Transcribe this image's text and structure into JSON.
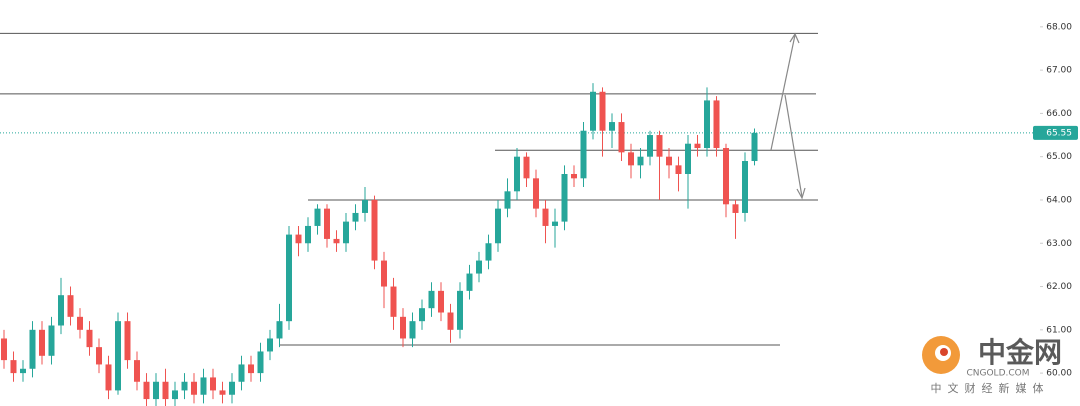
{
  "chart_data": {
    "type": "candlestick",
    "up_color": "#26a69a",
    "down_color": "#ef5350",
    "ylim": [
      59.24,
      68.62
    ],
    "yticks": [
      {
        "value": 60,
        "label": "60.00"
      },
      {
        "value": 61,
        "label": "61.00"
      },
      {
        "value": 62,
        "label": "62.00"
      },
      {
        "value": 63,
        "label": "63.00"
      },
      {
        "value": 64,
        "label": "64.00"
      },
      {
        "value": 65,
        "label": "65.00"
      },
      {
        "value": 66,
        "label": "66.00"
      },
      {
        "value": 67,
        "label": "67.00"
      },
      {
        "value": 68,
        "label": "68.00"
      }
    ],
    "last_price": 65.55,
    "levels": [
      67.85,
      66.45,
      65.15,
      64.0,
      60.65
    ],
    "open": [
      60.8,
      60.3,
      60.0,
      60.1,
      61.0,
      60.4,
      61.1,
      61.8,
      61.3,
      61.0,
      60.6,
      60.2,
      59.6,
      61.2,
      60.3,
      59.8,
      59.4,
      59.8,
      59.4,
      59.6,
      59.8,
      59.5,
      59.9,
      59.6,
      59.5,
      59.8,
      60.2,
      60.0,
      60.5,
      60.8,
      61.2,
      63.2,
      63.0,
      63.4,
      63.8,
      63.1,
      63.0,
      63.5,
      63.7,
      64.0,
      62.6,
      62.0,
      61.3,
      60.8,
      61.2,
      61.5,
      61.9,
      61.4,
      61.0,
      61.9,
      62.3,
      62.6,
      63.0,
      63.8,
      64.2,
      65.0,
      64.5,
      63.8,
      63.4,
      63.5,
      64.6,
      64.5,
      65.6,
      66.5,
      65.6,
      65.8,
      65.1,
      64.8,
      65.0,
      65.5,
      65.0,
      64.8,
      64.6,
      65.3,
      65.2,
      66.3,
      65.2,
      63.9,
      63.7,
      64.9
    ],
    "high": [
      61.0,
      60.5,
      60.3,
      61.2,
      61.2,
      61.3,
      62.2,
      62.0,
      61.5,
      61.2,
      60.8,
      60.4,
      61.4,
      61.4,
      60.5,
      60.0,
      60.0,
      60.1,
      59.8,
      60.0,
      60.0,
      60.1,
      60.1,
      59.8,
      60.0,
      60.4,
      60.4,
      60.7,
      61.0,
      61.6,
      63.4,
      63.4,
      63.6,
      63.9,
      63.9,
      63.3,
      63.7,
      63.9,
      64.3,
      64.1,
      62.8,
      62.2,
      61.5,
      61.4,
      61.7,
      62.1,
      62.1,
      61.6,
      62.1,
      62.5,
      62.8,
      63.2,
      64.0,
      64.5,
      65.2,
      65.1,
      64.7,
      64.0,
      63.8,
      64.8,
      64.8,
      65.8,
      66.7,
      66.6,
      66.0,
      66.0,
      65.3,
      65.2,
      65.6,
      65.6,
      65.2,
      65.0,
      65.5,
      65.5,
      66.6,
      66.4,
      65.3,
      64.0,
      65.1,
      65.65
    ],
    "low": [
      60.1,
      59.8,
      59.8,
      59.9,
      60.2,
      60.2,
      60.9,
      61.1,
      60.8,
      60.4,
      60.0,
      59.4,
      59.5,
      60.1,
      59.6,
      59.2,
      59.2,
      59.2,
      59.2,
      59.4,
      59.3,
      59.3,
      59.4,
      59.3,
      59.3,
      59.6,
      59.8,
      59.8,
      60.3,
      60.6,
      61.0,
      62.7,
      62.8,
      63.2,
      62.9,
      62.8,
      62.8,
      63.3,
      63.5,
      62.4,
      61.5,
      61.0,
      60.6,
      60.6,
      61.0,
      61.3,
      61.2,
      60.7,
      60.8,
      61.7,
      62.1,
      62.4,
      62.8,
      63.6,
      64.0,
      64.3,
      63.6,
      63.0,
      62.9,
      63.3,
      64.3,
      64.3,
      65.4,
      65.0,
      65.2,
      64.9,
      64.5,
      64.5,
      64.8,
      64.0,
      64.5,
      64.2,
      63.8,
      65.0,
      65.0,
      65.0,
      63.6,
      63.1,
      63.5,
      64.8
    ],
    "close": [
      60.3,
      60.0,
      60.1,
      61.0,
      60.4,
      61.1,
      61.8,
      61.3,
      61.0,
      60.6,
      60.2,
      59.6,
      61.2,
      60.3,
      59.8,
      59.4,
      59.8,
      59.4,
      59.6,
      59.8,
      59.5,
      59.9,
      59.6,
      59.5,
      59.8,
      60.2,
      60.0,
      60.5,
      60.8,
      61.2,
      63.2,
      63.0,
      63.4,
      63.8,
      63.1,
      63.0,
      63.5,
      63.7,
      64.0,
      62.6,
      62.0,
      61.3,
      60.8,
      61.2,
      61.5,
      61.9,
      61.4,
      61.0,
      61.9,
      62.3,
      62.6,
      63.0,
      63.8,
      64.2,
      65.0,
      64.5,
      63.8,
      63.4,
      63.5,
      64.6,
      64.5,
      65.6,
      66.5,
      65.6,
      65.8,
      65.1,
      64.8,
      65.0,
      65.5,
      65.0,
      64.8,
      64.6,
      65.3,
      65.2,
      66.3,
      65.2,
      63.9,
      63.7,
      64.9,
      65.55
    ]
  },
  "watermark": {
    "name": "中金网",
    "domain": "CNGOLD.COM",
    "tagline": "中文财经新媒体"
  }
}
